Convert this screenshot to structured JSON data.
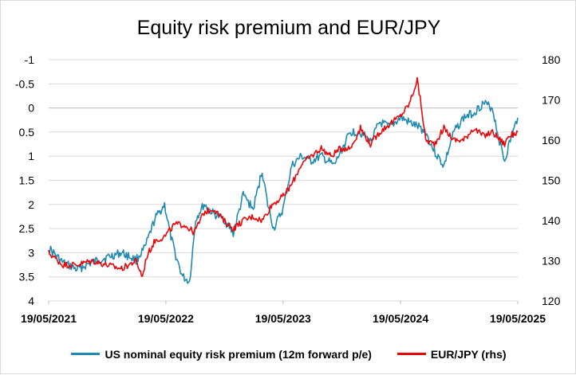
{
  "chart_data": {
    "type": "line",
    "title": "Equity risk premium and EUR/JPY",
    "x_ticks": [
      "19/05/2021",
      "19/05/2022",
      "19/05/2023",
      "19/05/2024",
      "19/05/2025"
    ],
    "y_left": {
      "ticks": [
        "-1",
        "-0.5",
        "0",
        "0.5",
        "1",
        "1.5",
        "2",
        "2.5",
        "3",
        "3.5",
        "4"
      ],
      "range": [
        -1,
        4
      ],
      "inverted": true
    },
    "y_right": {
      "ticks": [
        "120",
        "130",
        "140",
        "150",
        "160",
        "170",
        "180"
      ],
      "range": [
        120,
        180
      ]
    },
    "grid": "horizontal",
    "legend_position": "bottom",
    "series": [
      {
        "name": "US nominal equity risk premium (12m forward p/e)",
        "axis": "left",
        "color": "#1f8bb0",
        "x": [
          "2021-05-19",
          "2021-07-01",
          "2021-08-15",
          "2021-10-01",
          "2021-11-15",
          "2022-01-01",
          "2022-02-15",
          "2022-03-15",
          "2022-04-15",
          "2022-05-15",
          "2022-06-01",
          "2022-06-16",
          "2022-07-10",
          "2022-08-01",
          "2022-08-20",
          "2022-09-15",
          "2022-10-15",
          "2022-11-15",
          "2022-12-15",
          "2023-01-15",
          "2023-02-15",
          "2023-03-15",
          "2023-04-01",
          "2023-04-20",
          "2023-05-19",
          "2023-06-15",
          "2023-07-15",
          "2023-08-15",
          "2023-09-15",
          "2023-10-25",
          "2023-11-15",
          "2023-12-15",
          "2024-01-15",
          "2024-02-15",
          "2024-03-15",
          "2024-04-15",
          "2024-05-19",
          "2024-06-15",
          "2024-07-15",
          "2024-08-05",
          "2024-09-01",
          "2024-10-01",
          "2024-11-01",
          "2024-12-01",
          "2025-01-01",
          "2025-02-01",
          "2025-03-01",
          "2025-03-20",
          "2025-04-08",
          "2025-04-20",
          "2025-05-19"
        ],
        "values": [
          2.9,
          3.2,
          3.35,
          3.2,
          3.1,
          3.0,
          3.15,
          2.9,
          2.3,
          2.0,
          2.6,
          3.0,
          3.5,
          3.6,
          2.3,
          2.0,
          2.2,
          2.3,
          2.6,
          1.8,
          2.1,
          1.3,
          2.0,
          2.5,
          2.1,
          1.2,
          1.0,
          1.1,
          1.0,
          1.2,
          0.9,
          0.5,
          0.5,
          0.7,
          0.3,
          0.4,
          0.2,
          0.3,
          0.4,
          0.5,
          0.9,
          1.2,
          0.5,
          0.2,
          0.1,
          -0.1,
          0.0,
          0.6,
          1.1,
          0.8,
          0.2
        ]
      },
      {
        "name": "EUR/JPY (rhs)",
        "axis": "right",
        "color": "#e8070a",
        "x": [
          "2021-05-19",
          "2021-07-01",
          "2021-08-15",
          "2021-10-01",
          "2021-11-15",
          "2022-01-01",
          "2022-02-15",
          "2022-03-07",
          "2022-03-20",
          "2022-04-15",
          "2022-05-15",
          "2022-06-15",
          "2022-07-15",
          "2022-08-15",
          "2022-09-15",
          "2022-10-15",
          "2022-11-15",
          "2022-12-15",
          "2023-01-15",
          "2023-02-15",
          "2023-03-15",
          "2023-04-15",
          "2023-05-19",
          "2023-06-15",
          "2023-07-15",
          "2023-08-15",
          "2023-09-15",
          "2023-10-15",
          "2023-11-15",
          "2023-12-15",
          "2024-01-15",
          "2024-02-15",
          "2024-03-15",
          "2024-04-15",
          "2024-05-19",
          "2024-06-15",
          "2024-07-10",
          "2024-07-25",
          "2024-08-05",
          "2024-09-01",
          "2024-10-01",
          "2024-11-01",
          "2024-12-01",
          "2025-01-01",
          "2025-02-01",
          "2025-03-01",
          "2025-04-08",
          "2025-04-20",
          "2025-05-19"
        ],
        "values": [
          132,
          129,
          129,
          130,
          129,
          128,
          130,
          126,
          131,
          135,
          136,
          139,
          139,
          137,
          142,
          143,
          140,
          138,
          140,
          141,
          140,
          144,
          146,
          149,
          154,
          156,
          158,
          156,
          158,
          158,
          163,
          159,
          162,
          164,
          166,
          169,
          175,
          167,
          160,
          159,
          163,
          160,
          160,
          163,
          161,
          162,
          159,
          161,
          162
        ]
      }
    ]
  },
  "legend": {
    "erp": "US nominal equity risk premium (12m forward p/e)",
    "eurjpy": "EUR/JPY (rhs)"
  }
}
